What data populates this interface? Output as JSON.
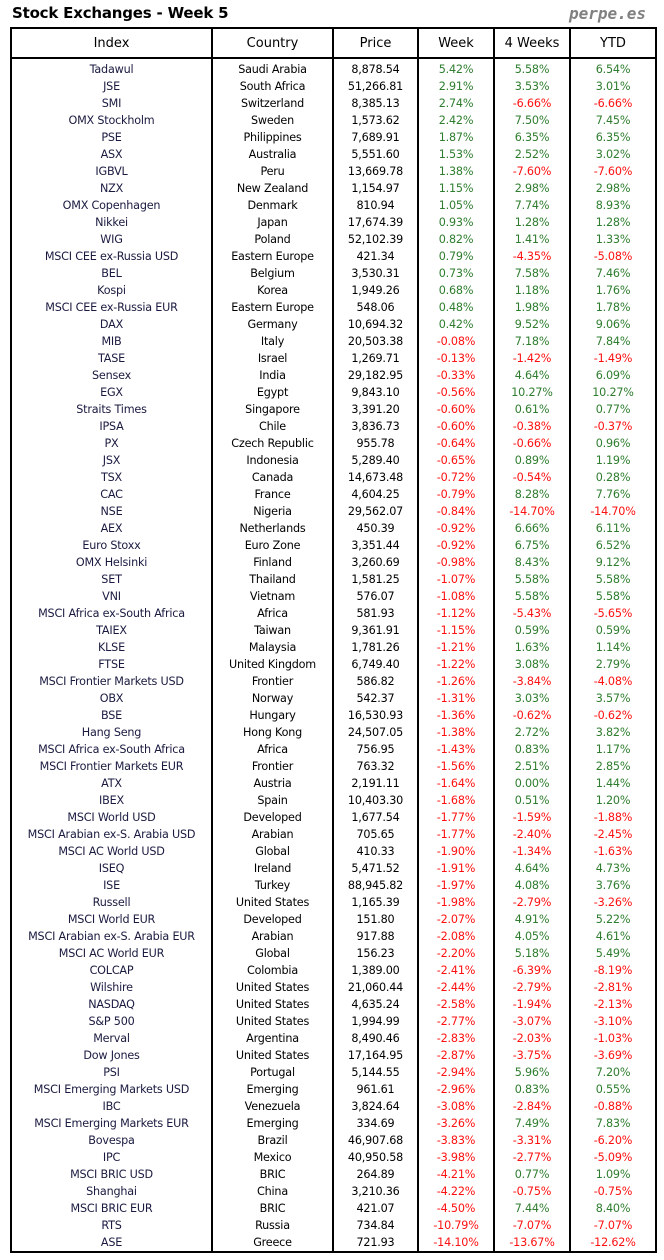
{
  "title": "Stock Exchanges - Week 5",
  "brand": "perpe.es",
  "colors": {
    "positive": "#2e7d2e",
    "negative": "#ff1010"
  },
  "headers": [
    "Index",
    "Country",
    "Price",
    "Week",
    "4 Weeks",
    "YTD"
  ],
  "rows": [
    [
      "Tadawul",
      "Saudi Arabia",
      "8,878.54",
      "5.42%",
      "5.58%",
      "6.54%"
    ],
    [
      "JSE",
      "South Africa",
      "51,266.81",
      "2.91%",
      "3.53%",
      "3.01%"
    ],
    [
      "SMI",
      "Switzerland",
      "8,385.13",
      "2.74%",
      "-6.66%",
      "-6.66%"
    ],
    [
      "OMX Stockholm",
      "Sweden",
      "1,573.62",
      "2.42%",
      "7.50%",
      "7.45%"
    ],
    [
      "PSE",
      "Philippines",
      "7,689.91",
      "1.87%",
      "6.35%",
      "6.35%"
    ],
    [
      "ASX",
      "Australia",
      "5,551.60",
      "1.53%",
      "2.52%",
      "3.02%"
    ],
    [
      "IGBVL",
      "Peru",
      "13,669.78",
      "1.38%",
      "-7.60%",
      "-7.60%"
    ],
    [
      "NZX",
      "New Zealand",
      "1,154.97",
      "1.15%",
      "2.98%",
      "2.98%"
    ],
    [
      "OMX Copenhagen",
      "Denmark",
      "810.94",
      "1.05%",
      "7.74%",
      "8.93%"
    ],
    [
      "Nikkei",
      "Japan",
      "17,674.39",
      "0.93%",
      "1.28%",
      "1.28%"
    ],
    [
      "WIG",
      "Poland",
      "52,102.39",
      "0.82%",
      "1.41%",
      "1.33%"
    ],
    [
      "MSCI CEE ex-Russia USD",
      "Eastern Europe",
      "421.34",
      "0.79%",
      "-4.35%",
      "-5.08%"
    ],
    [
      "BEL",
      "Belgium",
      "3,530.31",
      "0.73%",
      "7.58%",
      "7.46%"
    ],
    [
      "Kospi",
      "Korea",
      "1,949.26",
      "0.68%",
      "1.18%",
      "1.76%"
    ],
    [
      "MSCI CEE ex-Russia EUR",
      "Eastern Europe",
      "548.06",
      "0.48%",
      "1.98%",
      "1.78%"
    ],
    [
      "DAX",
      "Germany",
      "10,694.32",
      "0.42%",
      "9.52%",
      "9.06%"
    ],
    [
      "MIB",
      "Italy",
      "20,503.38",
      "-0.08%",
      "7.18%",
      "7.84%"
    ],
    [
      "TASE",
      "Israel",
      "1,269.71",
      "-0.13%",
      "-1.42%",
      "-1.49%"
    ],
    [
      "Sensex",
      "India",
      "29,182.95",
      "-0.33%",
      "4.64%",
      "6.09%"
    ],
    [
      "EGX",
      "Egypt",
      "9,843.10",
      "-0.56%",
      "10.27%",
      "10.27%"
    ],
    [
      "Straits Times",
      "Singapore",
      "3,391.20",
      "-0.60%",
      "0.61%",
      "0.77%"
    ],
    [
      "IPSA",
      "Chile",
      "3,836.73",
      "-0.60%",
      "-0.38%",
      "-0.37%"
    ],
    [
      "PX",
      "Czech Republic",
      "955.78",
      "-0.64%",
      "-0.66%",
      "0.96%"
    ],
    [
      "JSX",
      "Indonesia",
      "5,289.40",
      "-0.65%",
      "0.89%",
      "1.19%"
    ],
    [
      "TSX",
      "Canada",
      "14,673.48",
      "-0.72%",
      "-0.54%",
      "0.28%"
    ],
    [
      "CAC",
      "France",
      "4,604.25",
      "-0.79%",
      "8.28%",
      "7.76%"
    ],
    [
      "NSE",
      "Nigeria",
      "29,562.07",
      "-0.84%",
      "-14.70%",
      "-14.70%"
    ],
    [
      "AEX",
      "Netherlands",
      "450.39",
      "-0.92%",
      "6.66%",
      "6.11%"
    ],
    [
      "Euro Stoxx",
      "Euro Zone",
      "3,351.44",
      "-0.92%",
      "6.75%",
      "6.52%"
    ],
    [
      "OMX Helsinki",
      "Finland",
      "3,260.69",
      "-0.98%",
      "8.43%",
      "9.12%"
    ],
    [
      "SET",
      "Thailand",
      "1,581.25",
      "-1.07%",
      "5.58%",
      "5.58%"
    ],
    [
      "VNI",
      "Vietnam",
      "576.07",
      "-1.08%",
      "5.58%",
      "5.58%"
    ],
    [
      "MSCI Africa ex-South Africa",
      "Africa",
      "581.93",
      "-1.12%",
      "-5.43%",
      "-5.65%"
    ],
    [
      "TAIEX",
      "Taiwan",
      "9,361.91",
      "-1.15%",
      "0.59%",
      "0.59%"
    ],
    [
      "KLSE",
      "Malaysia",
      "1,781.26",
      "-1.21%",
      "1.63%",
      "1.14%"
    ],
    [
      "FTSE",
      "United Kingdom",
      "6,749.40",
      "-1.22%",
      "3.08%",
      "2.79%"
    ],
    [
      "MSCI Frontier Markets USD",
      "Frontier",
      "586.82",
      "-1.26%",
      "-3.84%",
      "-4.08%"
    ],
    [
      "OBX",
      "Norway",
      "542.37",
      "-1.31%",
      "3.03%",
      "3.57%"
    ],
    [
      "BSE",
      "Hungary",
      "16,530.93",
      "-1.36%",
      "-0.62%",
      "-0.62%"
    ],
    [
      "Hang Seng",
      "Hong Kong",
      "24,507.05",
      "-1.38%",
      "2.72%",
      "3.82%"
    ],
    [
      "MSCI Africa ex-South Africa",
      "Africa",
      "756.95",
      "-1.43%",
      "0.83%",
      "1.17%"
    ],
    [
      "MSCI Frontier Markets EUR",
      "Frontier",
      "763.32",
      "-1.56%",
      "2.51%",
      "2.85%"
    ],
    [
      "ATX",
      "Austria",
      "2,191.11",
      "-1.64%",
      "0.00%",
      "1.44%"
    ],
    [
      "IBEX",
      "Spain",
      "10,403.30",
      "-1.68%",
      "0.51%",
      "1.20%"
    ],
    [
      "MSCI World USD",
      "Developed",
      "1,677.54",
      "-1.77%",
      "-1.59%",
      "-1.88%"
    ],
    [
      "MSCI Arabian ex-S. Arabia USD",
      "Arabian",
      "705.65",
      "-1.77%",
      "-2.40%",
      "-2.45%"
    ],
    [
      "MSCI AC World USD",
      "Global",
      "410.33",
      "-1.90%",
      "-1.34%",
      "-1.63%"
    ],
    [
      "ISEQ",
      "Ireland",
      "5,471.52",
      "-1.91%",
      "4.64%",
      "4.73%"
    ],
    [
      "ISE",
      "Turkey",
      "88,945.82",
      "-1.97%",
      "4.08%",
      "3.76%"
    ],
    [
      "Russell",
      "United States",
      "1,165.39",
      "-1.98%",
      "-2.79%",
      "-3.26%"
    ],
    [
      "MSCI World EUR",
      "Developed",
      "151.80",
      "-2.07%",
      "4.91%",
      "5.22%"
    ],
    [
      "MSCI Arabian ex-S. Arabia EUR",
      "Arabian",
      "917.88",
      "-2.08%",
      "4.05%",
      "4.61%"
    ],
    [
      "MSCI AC World EUR",
      "Global",
      "156.23",
      "-2.20%",
      "5.18%",
      "5.49%"
    ],
    [
      "COLCAP",
      "Colombia",
      "1,389.00",
      "-2.41%",
      "-6.39%",
      "-8.19%"
    ],
    [
      "Wilshire",
      "United States",
      "21,060.44",
      "-2.44%",
      "-2.79%",
      "-2.81%"
    ],
    [
      "NASDAQ",
      "United States",
      "4,635.24",
      "-2.58%",
      "-1.94%",
      "-2.13%"
    ],
    [
      "S&P 500",
      "United States",
      "1,994.99",
      "-2.77%",
      "-3.07%",
      "-3.10%"
    ],
    [
      "Merval",
      "Argentina",
      "8,490.46",
      "-2.83%",
      "-2.03%",
      "-1.03%"
    ],
    [
      "Dow Jones",
      "United States",
      "17,164.95",
      "-2.87%",
      "-3.75%",
      "-3.69%"
    ],
    [
      "PSI",
      "Portugal",
      "5,144.55",
      "-2.94%",
      "5.96%",
      "7.20%"
    ],
    [
      "MSCI Emerging Markets USD",
      "Emerging",
      "961.61",
      "-2.96%",
      "0.83%",
      "0.55%"
    ],
    [
      "IBC",
      "Venezuela",
      "3,824.64",
      "-3.08%",
      "-2.84%",
      "-0.88%"
    ],
    [
      "MSCI Emerging Markets EUR",
      "Emerging",
      "334.69",
      "-3.26%",
      "7.49%",
      "7.83%"
    ],
    [
      "Bovespa",
      "Brazil",
      "46,907.68",
      "-3.83%",
      "-3.31%",
      "-6.20%"
    ],
    [
      "IPC",
      "Mexico",
      "40,950.58",
      "-3.98%",
      "-2.77%",
      "-5.09%"
    ],
    [
      "MSCI BRIC USD",
      "BRIC",
      "264.89",
      "-4.21%",
      "0.77%",
      "1.09%"
    ],
    [
      "Shanghai",
      "China",
      "3,210.36",
      "-4.22%",
      "-0.75%",
      "-0.75%"
    ],
    [
      "MSCI BRIC EUR",
      "BRIC",
      "421.07",
      "-4.50%",
      "7.44%",
      "8.40%"
    ],
    [
      "RTS",
      "Russia",
      "734.84",
      "-10.79%",
      "-7.07%",
      "-7.07%"
    ],
    [
      "ASE",
      "Greece",
      "721.93",
      "-14.10%",
      "-13.67%",
      "-12.62%"
    ]
  ]
}
